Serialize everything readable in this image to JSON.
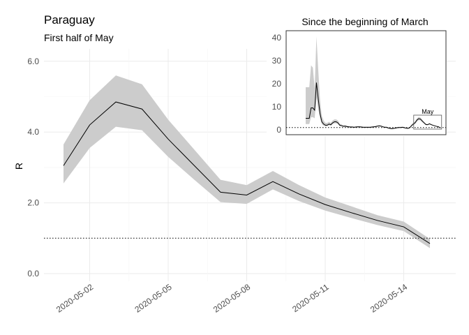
{
  "chart_data": [
    {
      "type": "area",
      "title": "Paraguay",
      "subtitle": "First half of May",
      "xlabel": "",
      "ylabel": "R",
      "ylim": [
        -0.2,
        6.4
      ],
      "xticks": [
        "2020-05-02",
        "2020-05-05",
        "2020-05-08",
        "2020-05-11",
        "2020-05-14"
      ],
      "xtick_positions": [
        2,
        5,
        8,
        11,
        14
      ],
      "yticks": [
        "0.0",
        "2.0",
        "4.0",
        "6.0"
      ],
      "ytick_values": [
        0,
        2,
        4,
        6
      ],
      "reference_line": 1,
      "grid": true,
      "x": [
        1,
        2,
        3,
        4,
        5,
        6,
        7,
        8,
        9,
        10,
        11,
        12,
        13,
        14,
        15
      ],
      "series": [
        {
          "estimate": [
            3.05,
            4.2,
            4.85,
            4.65,
            3.8,
            3.05,
            2.3,
            2.22,
            2.6,
            2.25,
            1.95,
            1.72,
            1.5,
            1.32,
            0.85
          ],
          "lower": [
            2.55,
            3.55,
            4.15,
            4.05,
            3.3,
            2.65,
            2.02,
            1.97,
            2.38,
            2.05,
            1.78,
            1.57,
            1.37,
            1.2,
            0.72
          ],
          "upper": [
            3.65,
            4.9,
            5.6,
            5.35,
            4.35,
            3.5,
            2.65,
            2.5,
            2.9,
            2.5,
            2.15,
            1.9,
            1.65,
            1.47,
            0.98
          ]
        }
      ]
    },
    {
      "type": "area",
      "title": "Since the beginning of March",
      "xlabel": "",
      "ylabel": "",
      "ylim": [
        -2,
        43
      ],
      "yticks": [
        "0",
        "10",
        "20",
        "30",
        "40"
      ],
      "ytick_values": [
        0,
        10,
        20,
        30,
        40
      ],
      "reference_line": 1,
      "annotation": "May",
      "highlight_range": [
        62,
        76
      ],
      "x": [
        1,
        2,
        3,
        4,
        5,
        6,
        7,
        8,
        9,
        10,
        11,
        12,
        13,
        14,
        15,
        16,
        17,
        18,
        19,
        20,
        21,
        22,
        23,
        24,
        25,
        26,
        27,
        28,
        29,
        30,
        31,
        32,
        33,
        34,
        35,
        36,
        37,
        38,
        39,
        40,
        41,
        42,
        43,
        44,
        45,
        46,
        47,
        48,
        49,
        50,
        51,
        52,
        53,
        54,
        55,
        56,
        57,
        58,
        59,
        60,
        61,
        62,
        63,
        64,
        65,
        66,
        67,
        68,
        69,
        70,
        71,
        72,
        73,
        74,
        75,
        76
      ],
      "series": [
        {
          "estimate": [
            5,
            5,
            5,
            9.5,
            9.5,
            8.5,
            20.5,
            13.5,
            7,
            3.5,
            2.5,
            2,
            2,
            2.5,
            2.2,
            3,
            3.5,
            3.5,
            3,
            2,
            1.8,
            1.5,
            1.6,
            1.4,
            1.3,
            1.2,
            1.2,
            1.1,
            1.2,
            1.3,
            1.3,
            1.2,
            1.1,
            1.1,
            1.1,
            1.1,
            1.1,
            1.2,
            1.3,
            1.4,
            1.6,
            1.7,
            1.6,
            1.3,
            1.1,
            1.1,
            0.8,
            0.6,
            0.5,
            0.6,
            0.7,
            0.9,
            1,
            1,
            1.1,
            0.9,
            0.7,
            0.6,
            0.9,
            1.8,
            2.5,
            3.05,
            4.2,
            4.85,
            4.65,
            3.8,
            3.05,
            2.3,
            2.22,
            2.6,
            2.25,
            1.95,
            1.72,
            1.5,
            1.32,
            0.85
          ],
          "lower": [
            2.5,
            2.5,
            2.5,
            5.5,
            5.5,
            5,
            14,
            9,
            5,
            2.5,
            1.8,
            1.5,
            1.5,
            2,
            1.8,
            2.5,
            2.8,
            2.8,
            2.5,
            1.6,
            1.5,
            1.2,
            1.3,
            1.1,
            1.1,
            1,
            1,
            0.9,
            1,
            1.1,
            1.1,
            1,
            0.9,
            0.9,
            0.9,
            0.9,
            0.9,
            1,
            1.1,
            1.2,
            1.4,
            1.5,
            1.4,
            1.1,
            0.9,
            0.9,
            0.6,
            0.4,
            0.3,
            0.4,
            0.5,
            0.7,
            0.8,
            0.8,
            0.9,
            0.7,
            0.5,
            0.4,
            0.7,
            1.4,
            2,
            2.55,
            3.55,
            4.15,
            4.05,
            3.3,
            2.65,
            2.02,
            1.97,
            2.38,
            2.05,
            1.78,
            1.57,
            1.37,
            1.2,
            0.72
          ],
          "upper": [
            18.5,
            18.5,
            18.5,
            28,
            27,
            18,
            40.5,
            26,
            13,
            6,
            4,
            3,
            3,
            3.5,
            3,
            4,
            4.5,
            4.5,
            4,
            2.6,
            2.3,
            2,
            2,
            1.8,
            1.6,
            1.5,
            1.5,
            1.4,
            1.5,
            1.6,
            1.6,
            1.5,
            1.4,
            1.4,
            1.4,
            1.4,
            1.4,
            1.5,
            1.6,
            1.7,
            1.9,
            2,
            1.9,
            1.6,
            1.4,
            1.4,
            1.1,
            0.9,
            0.8,
            0.9,
            1,
            1.2,
            1.3,
            1.3,
            1.4,
            1.2,
            1,
            0.9,
            1.2,
            2.3,
            3.1,
            3.65,
            4.9,
            5.6,
            5.35,
            4.35,
            3.5,
            2.65,
            2.5,
            2.9,
            2.5,
            2.15,
            1.9,
            1.65,
            1.47,
            0.98
          ]
        }
      ]
    }
  ]
}
